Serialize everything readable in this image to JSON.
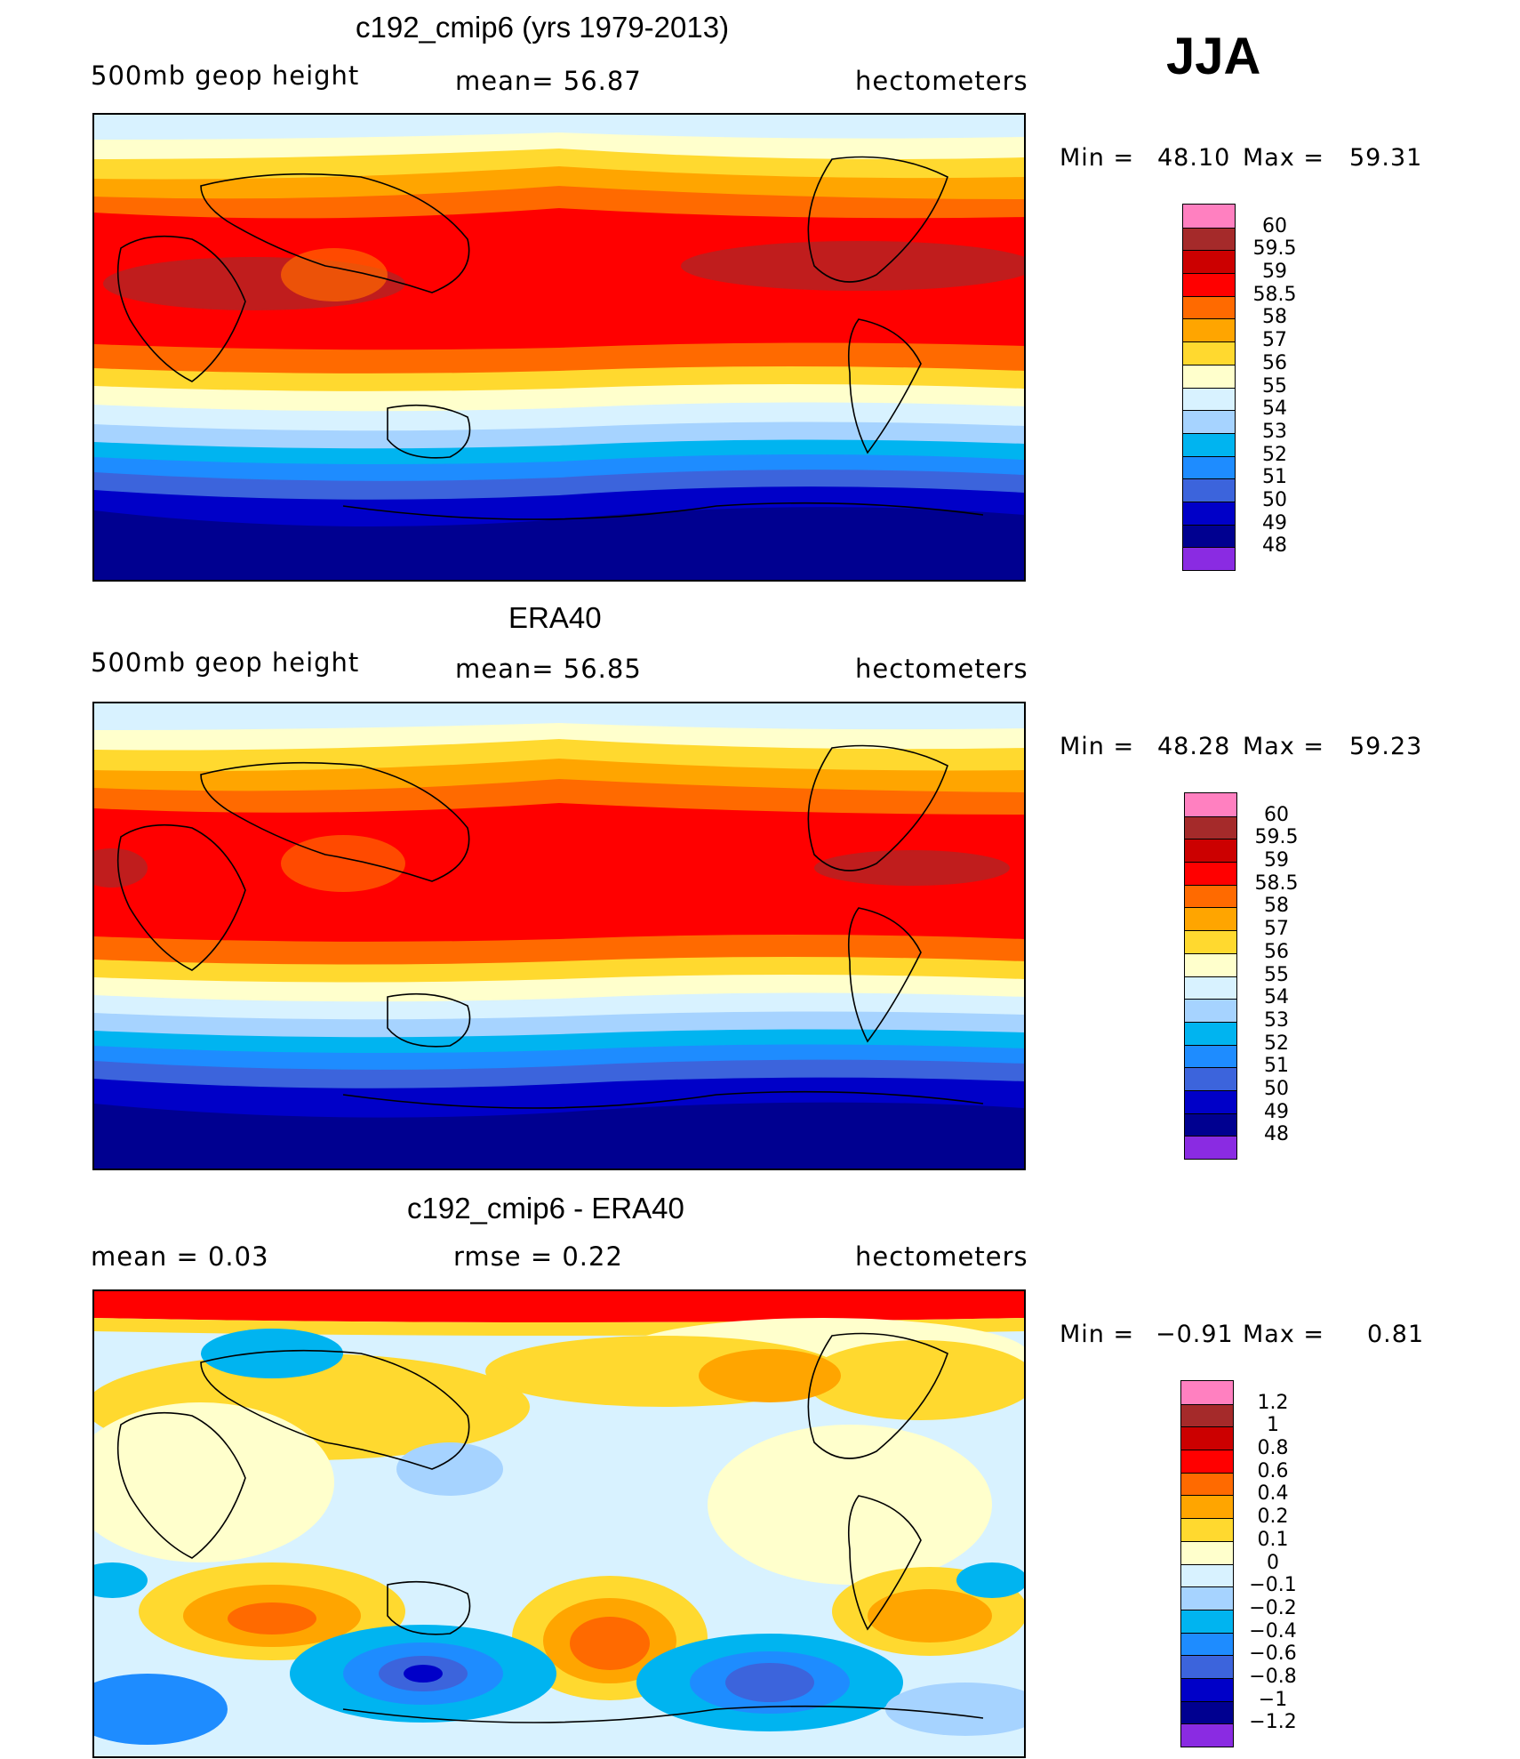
{
  "season": "JJA",
  "colors": {
    "main_scale": [
      "#ff80c0",
      "#a52a2a",
      "#cc0000",
      "#ff0000",
      "#ff6a00",
      "#ffa500",
      "#ffd92f",
      "#ffffcc",
      "#d8f2ff",
      "#a6d3ff",
      "#00b4f0",
      "#1e8cff",
      "#3c64dc",
      "#0000c8",
      "#000090",
      "#8a2be2"
    ],
    "diff_scale": [
      "#ff80c0",
      "#a52a2a",
      "#cc0000",
      "#ff0000",
      "#ff6a00",
      "#ffa500",
      "#ffd92f",
      "#ffffcc",
      "#d8f2ff",
      "#a6d3ff",
      "#00b4f0",
      "#1e8cff",
      "#3c64dc",
      "#0000c8",
      "#000090",
      "#8a2be2"
    ]
  },
  "panels": [
    {
      "title": "c192_cmip6 (yrs 1979-2013)",
      "left_label": "500mb geop height",
      "center_label": "mean=   56.87",
      "right_label": "hectometers",
      "min_label": "Min =",
      "min_value": "48.10",
      "max_label": "Max =",
      "max_value": "59.31",
      "colorbar_labels": [
        "60",
        "59.5",
        "59",
        "58.5",
        "58",
        "57",
        "56",
        "55",
        "54",
        "53",
        "52",
        "51",
        "50",
        "49",
        "48"
      ]
    },
    {
      "title": "ERA40",
      "left_label": "500mb geop height",
      "center_label": "mean=   56.85",
      "right_label": "hectometers",
      "min_label": "Min =",
      "min_value": "48.28",
      "max_label": "Max =",
      "max_value": "59.23",
      "colorbar_labels": [
        "60",
        "59.5",
        "59",
        "58.5",
        "58",
        "57",
        "56",
        "55",
        "54",
        "53",
        "52",
        "51",
        "50",
        "49",
        "48"
      ]
    },
    {
      "title": "c192_cmip6 - ERA40",
      "left_label": "mean =    0.03",
      "center_label": "rmse =    0.22",
      "right_label": "hectometers",
      "min_label": "Min =",
      "min_value": "−0.91",
      "max_label": "Max =",
      "max_value": "0.81",
      "colorbar_labels": [
        "1.2",
        "1",
        "0.8",
        "0.6",
        "0.4",
        "0.2",
        "0.1",
        "0",
        "−0.1",
        "−0.2",
        "−0.4",
        "−0.6",
        "−0.8",
        "−1",
        "−1.2"
      ]
    }
  ]
}
